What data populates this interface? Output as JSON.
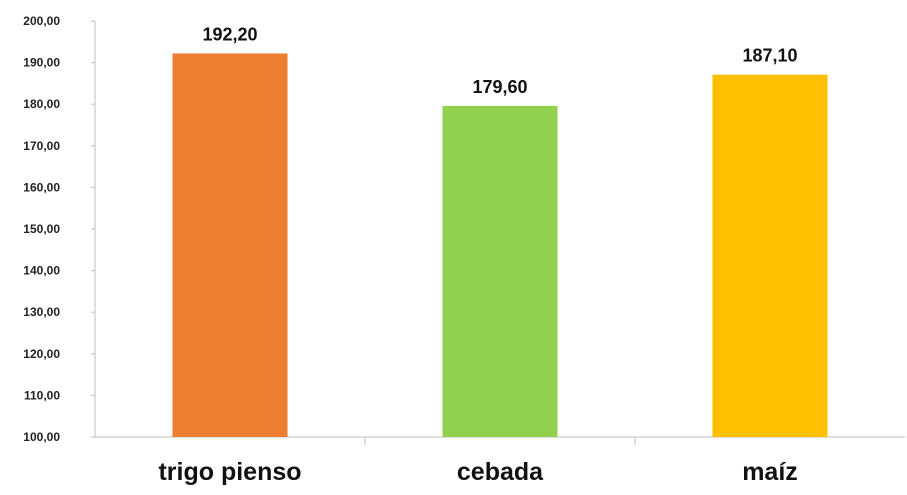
{
  "chart_data": {
    "type": "bar",
    "categories": [
      "trigo pienso",
      "cebada",
      "maíz"
    ],
    "values": [
      192.2,
      179.6,
      187.1
    ],
    "data_labels": [
      "192,20",
      "179,60",
      "187,10"
    ],
    "colors": [
      "#ED7D31",
      "#92D050",
      "#FFC000"
    ],
    "title": "",
    "xlabel": "",
    "ylabel": "",
    "ylim": [
      100,
      200
    ],
    "yticks": [
      100,
      110,
      120,
      130,
      140,
      150,
      160,
      170,
      180,
      190,
      200
    ],
    "ytick_labels": [
      "100,00",
      "110,00",
      "120,00",
      "130,00",
      "140,00",
      "150,00",
      "160,00",
      "170,00",
      "180,00",
      "190,00",
      "200,00"
    ],
    "grid": false,
    "legend": "none"
  }
}
